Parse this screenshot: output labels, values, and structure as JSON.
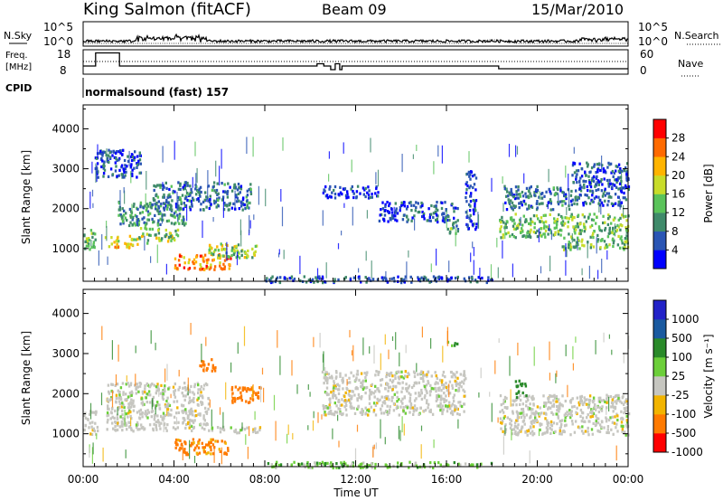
{
  "header": {
    "station": "King Salmon (fitACF)",
    "beam": "Beam 09",
    "date": "15/Mar/2010"
  },
  "noise_panel": {
    "left_label": "N.Sky",
    "right_label": "N.Search",
    "left_ticks": [
      "10^5",
      "10^0"
    ],
    "right_ticks": [
      "10^5",
      "10^0"
    ]
  },
  "freq_panel": {
    "left_label_1": "Freq.",
    "left_label_2": "[MHz]",
    "left_ticks": [
      "18",
      "8"
    ],
    "right_label": "Nave",
    "right_ticks": [
      "60",
      "0"
    ],
    "freq_steps": [
      {
        "t": 0.0,
        "f": 11.6
      },
      {
        "t": 0.55,
        "f": 17.4
      },
      {
        "t": 1.6,
        "f": 11.6
      },
      {
        "t": 10.3,
        "f": 12.6
      },
      {
        "t": 10.6,
        "f": 11.6
      },
      {
        "t": 10.9,
        "f": 10.0
      },
      {
        "t": 11.0,
        "f": 10.0
      },
      {
        "t": 11.1,
        "f": 12.6
      },
      {
        "t": 11.3,
        "f": 10.0
      },
      {
        "t": 11.4,
        "f": 11.6
      },
      {
        "t": 18.3,
        "f": 10.4
      },
      {
        "t": 24.0,
        "f": 10.4
      }
    ]
  },
  "cpid": {
    "label": "CPID",
    "value": "normalsound (fast) 157"
  },
  "power_colorbar": {
    "title": "Power [dB]",
    "ticks": [
      "28",
      "24",
      "20",
      "16",
      "12",
      "8",
      "4"
    ],
    "colors": [
      "#0000ff",
      "#2a55b4",
      "#3f8a6a",
      "#5ac35a",
      "#c8dc2a",
      "#ffb400",
      "#ff6a00",
      "#ff0000"
    ]
  },
  "velocity_colorbar": {
    "title": "Velocity [m s⁻¹]",
    "ticks": [
      "1000",
      "500",
      "100",
      "25",
      "-25",
      "-100",
      "-500",
      "-1000"
    ],
    "colors": [
      "#2222c8",
      "#1a5aa0",
      "#2a8a2a",
      "#6ccf3a",
      "#c6c6c0",
      "#f2b400",
      "#ff7a00",
      "#ff0000"
    ]
  },
  "xaxis": {
    "title": "Time UT",
    "ticks": [
      "00:00",
      "04:00",
      "08:00",
      "12:00",
      "16:00",
      "20:00",
      "00:00"
    ]
  },
  "yaxis": {
    "title": "Slant Range [km]",
    "ticks": [
      "1000",
      "2000",
      "3000",
      "4000"
    ]
  },
  "chart_data": {
    "type": "heatmap",
    "xlabel": "Time UT",
    "ylabel": "Slant Range [km]",
    "xlim": [
      0,
      24
    ],
    "ylim": [
      180,
      4600
    ],
    "power_bands": [
      {
        "t0": 0.0,
        "t1": 0.5,
        "r0": 1000,
        "r1": 1500,
        "p": 14
      },
      {
        "t0": 0.9,
        "t1": 2.4,
        "r0": 1050,
        "r1": 1350,
        "p": 20
      },
      {
        "t0": 2.4,
        "t1": 4.2,
        "r0": 1150,
        "r1": 1550,
        "p": 16
      },
      {
        "t0": 1.5,
        "t1": 4.5,
        "r0": 1600,
        "r1": 2200,
        "p": 10
      },
      {
        "t0": 3.0,
        "t1": 7.4,
        "r0": 2000,
        "r1": 2700,
        "p": 8
      },
      {
        "t0": 4.0,
        "t1": 6.5,
        "r0": 500,
        "r1": 900,
        "p": 24
      },
      {
        "t0": 5.5,
        "t1": 7.6,
        "r0": 800,
        "r1": 1150,
        "p": 16
      },
      {
        "t0": 0.5,
        "t1": 2.5,
        "r0": 2800,
        "r1": 3500,
        "p": 6
      },
      {
        "t0": 10.5,
        "t1": 13.0,
        "r0": 2300,
        "r1": 2600,
        "p": 4
      },
      {
        "t0": 13.0,
        "t1": 16.5,
        "r0": 1700,
        "r1": 2200,
        "p": 6
      },
      {
        "t0": 16.0,
        "t1": 16.6,
        "r0": 1400,
        "r1": 1700,
        "p": 12
      },
      {
        "t0": 16.8,
        "t1": 17.3,
        "r0": 1500,
        "r1": 3000,
        "p": 4
      },
      {
        "t0": 18.3,
        "t1": 21.0,
        "r0": 1300,
        "r1": 1900,
        "p": 14
      },
      {
        "t0": 21.0,
        "t1": 24.0,
        "r0": 1000,
        "r1": 1900,
        "p": 14
      },
      {
        "t0": 18.5,
        "t1": 21.5,
        "r0": 2000,
        "r1": 2600,
        "p": 8
      },
      {
        "t0": 21.5,
        "t1": 24.0,
        "r0": 2100,
        "r1": 3200,
        "p": 6
      },
      {
        "t0": 8.0,
        "t1": 18.0,
        "r0": 180,
        "r1": 330,
        "p": 6
      }
    ],
    "velocity_bands": [
      {
        "t0": 0.0,
        "t1": 0.6,
        "r0": 1000,
        "r1": 1600,
        "v": 0
      },
      {
        "t0": 1.0,
        "t1": 5.5,
        "r0": 1100,
        "r1": 2300,
        "v": 0
      },
      {
        "t0": 4.0,
        "t1": 6.5,
        "r0": 500,
        "r1": 900,
        "v": -80
      },
      {
        "t0": 6.5,
        "t1": 7.8,
        "r0": 1800,
        "r1": 2200,
        "v": -120
      },
      {
        "t0": 5.0,
        "t1": 5.8,
        "r0": 2600,
        "r1": 2900,
        "v": -200
      },
      {
        "t0": 5.5,
        "t1": 7.8,
        "r0": 1050,
        "r1": 1200,
        "v": 0
      },
      {
        "t0": 10.5,
        "t1": 16.8,
        "r0": 1500,
        "r1": 2600,
        "v": 0
      },
      {
        "t0": 8.0,
        "t1": 18.0,
        "r0": 180,
        "r1": 330,
        "v": 40
      },
      {
        "t0": 18.3,
        "t1": 24.0,
        "r0": 1000,
        "r1": 2000,
        "v": 0
      },
      {
        "t0": 19.0,
        "t1": 19.5,
        "r0": 1900,
        "r1": 2400,
        "v": 120
      },
      {
        "t0": 16.0,
        "t1": 16.5,
        "r0": 3200,
        "r1": 3400,
        "v": 60
      }
    ]
  }
}
